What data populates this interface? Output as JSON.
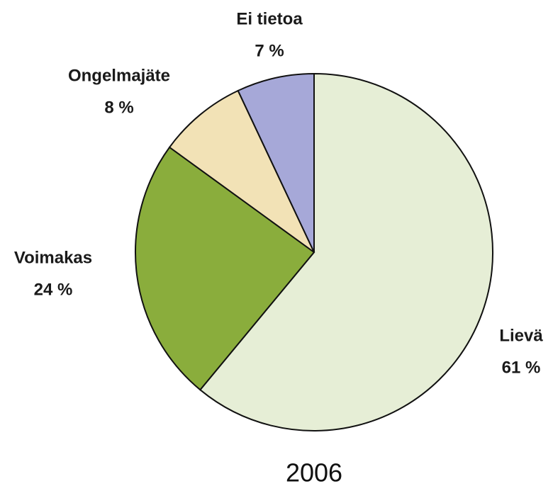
{
  "chart_data": {
    "type": "pie",
    "title": "2006",
    "categories": [
      "Lievä",
      "Voimakas",
      "Ongelmajäte",
      "Ei tietoa"
    ],
    "values": [
      61,
      24,
      8,
      7
    ],
    "value_labels": [
      "61 %",
      "24 %",
      "8 %",
      "7 %"
    ],
    "colors": [
      "#e6eed6",
      "#8aad3c",
      "#f2e2b6",
      "#a6a8d8"
    ]
  }
}
